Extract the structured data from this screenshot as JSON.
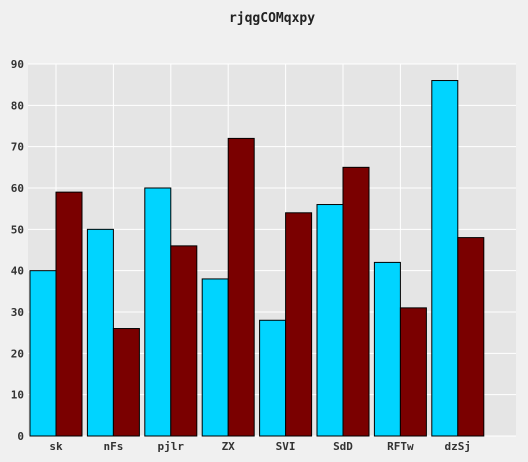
{
  "chart_data": {
    "type": "bar",
    "title": "rjqgCOMqxpy",
    "categories": [
      "sk",
      "nFs",
      "pjlr",
      "ZX",
      "SVI",
      "SdD",
      "RFTw",
      "dzSj"
    ],
    "series": [
      {
        "color": "#00d4ff",
        "values": [
          40,
          50,
          60,
          38,
          28,
          56,
          42,
          86
        ]
      },
      {
        "color": "#7a0000",
        "values": [
          59,
          26,
          46,
          72,
          54,
          65,
          31,
          48
        ]
      }
    ],
    "ylim": [
      0,
      90
    ],
    "yticks": [
      0,
      10,
      20,
      30,
      40,
      50,
      60,
      70,
      80,
      90
    ],
    "grid": true,
    "plot_background": "#e5e5e5",
    "grid_color": "#ffffff"
  }
}
